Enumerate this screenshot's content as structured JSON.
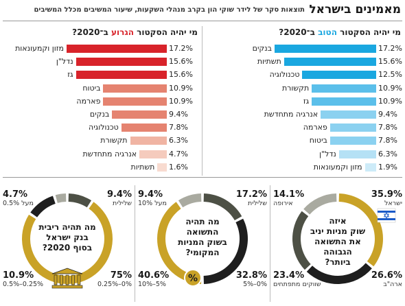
{
  "header": {
    "title": "מאמינים בישראל",
    "subtitle": "תוצאות סקר של לידר שוקי הון בקרב מנהלי השקעות, שיעור המשיבים מכלל המשיבים"
  },
  "chart_data": [
    {
      "type": "bar",
      "title_prefix": "מי יהיה הסקטור ",
      "title_highlight": "הטוב",
      "title_suffix": " ב־2020?",
      "color": "#1aa7e0",
      "categories": [
        "בנקים",
        "תשתיות",
        "טכנולוגיה",
        "תקשורת",
        "גז",
        "אנרגיה מתחדשת",
        "פארמה",
        "ביטוח",
        "נדל\"ן",
        "מזון וקמעונאות"
      ],
      "values": [
        17.2,
        15.6,
        12.5,
        10.9,
        10.9,
        9.4,
        7.8,
        7.8,
        6.3,
        1.9
      ],
      "value_labels": [
        "17.2%",
        "15.6%",
        "12.5%",
        "10.9%",
        "10.9%",
        "9.4%",
        "7.8%",
        "7.8%",
        "6.3%",
        "1.9%"
      ],
      "bar_colors": [
        "#1aa7e0",
        "#1aa7e0",
        "#1aa7e0",
        "#5bbfea",
        "#5bbfea",
        "#8bd1f0",
        "#8bd1f0",
        "#8bd1f0",
        "#b5e1f5",
        "#cdebf8"
      ]
    },
    {
      "type": "bar",
      "title_prefix": "מי יהיה הסקטור ",
      "title_highlight": "הגרוע",
      "title_suffix": " ב־2020?",
      "color": "#d8232a",
      "categories": [
        "מזון וקמעונאות",
        "נדל\"ן",
        "גז",
        "ביטוח",
        "פארמה",
        "בנקים",
        "טכנולוגיה",
        "תקשורת",
        "אנרגיה מתחדשת",
        "תשתיות"
      ],
      "values": [
        17.2,
        15.6,
        15.6,
        10.9,
        10.9,
        9.4,
        7.8,
        6.3,
        4.7,
        1.6
      ],
      "value_labels": [
        "17.2%",
        "15.6%",
        "15.6%",
        "10.9%",
        "10.9%",
        "9.4%",
        "7.8%",
        "6.3%",
        "4.7%",
        "1.6%"
      ],
      "bar_colors": [
        "#d8232a",
        "#d8232a",
        "#d8232a",
        "#e58370",
        "#e58370",
        "#e58370",
        "#e58370",
        "#f0b4a3",
        "#f5cbbd",
        "#f8dbd0"
      ]
    },
    {
      "type": "pie",
      "question": [
        "איזה",
        "שוק מניות יניב",
        "את התשואה",
        "הגבוהה",
        "ביותר?"
      ],
      "segments": [
        {
          "pct": "35.9%",
          "label": "ישראל",
          "value": 35.9,
          "color": "#c9a227"
        },
        {
          "pct": "26.6%",
          "label": "ארה\"ב",
          "value": 26.6,
          "color": "#1e1e1e"
        },
        {
          "pct": "23.4%",
          "label": "שווקים מתפתחים",
          "value": 23.4,
          "color": "#4d5045"
        },
        {
          "pct": "14.1%",
          "label": "אירופה",
          "value": 14.1,
          "color": "#a9aaa0"
        }
      ],
      "icon": "israel-flag-icon"
    },
    {
      "type": "pie",
      "question": [
        "מה תהיה",
        "התשואה",
        "בשוק המניות",
        "המקומי?"
      ],
      "segments": [
        {
          "pct": "17.2%",
          "label": "שלילית",
          "value": 17.2,
          "color": "#4d5045"
        },
        {
          "pct": "32.8%",
          "label": "0%–5%",
          "value": 32.8,
          "color": "#1e1e1e"
        },
        {
          "pct": "40.6%",
          "label": "5%–10%",
          "value": 40.6,
          "color": "#c9a227"
        },
        {
          "pct": "9.4%",
          "label": "מעל 10%",
          "value": 9.4,
          "color": "#a9aaa0"
        }
      ],
      "icon": "percent-icon",
      "icon_text": "%"
    },
    {
      "type": "pie",
      "question": [
        "מה תהיה ריבית",
        "בנק ישראל",
        "בסוף 2020?"
      ],
      "segments": [
        {
          "pct": "9.4%",
          "label": "שלילית",
          "value": 9.4,
          "color": "#4d5045"
        },
        {
          "pct": "75%",
          "label": "0%–0.25%",
          "value": 75,
          "color": "#c9a227"
        },
        {
          "pct": "10.9%",
          "label": "0.25%–0.5%",
          "value": 10.9,
          "color": "#1e1e1e"
        },
        {
          "pct": "4.7%",
          "label": "מעל 0.5%",
          "value": 4.7,
          "color": "#a9aaa0"
        }
      ],
      "icon": "bank-building-icon"
    }
  ]
}
